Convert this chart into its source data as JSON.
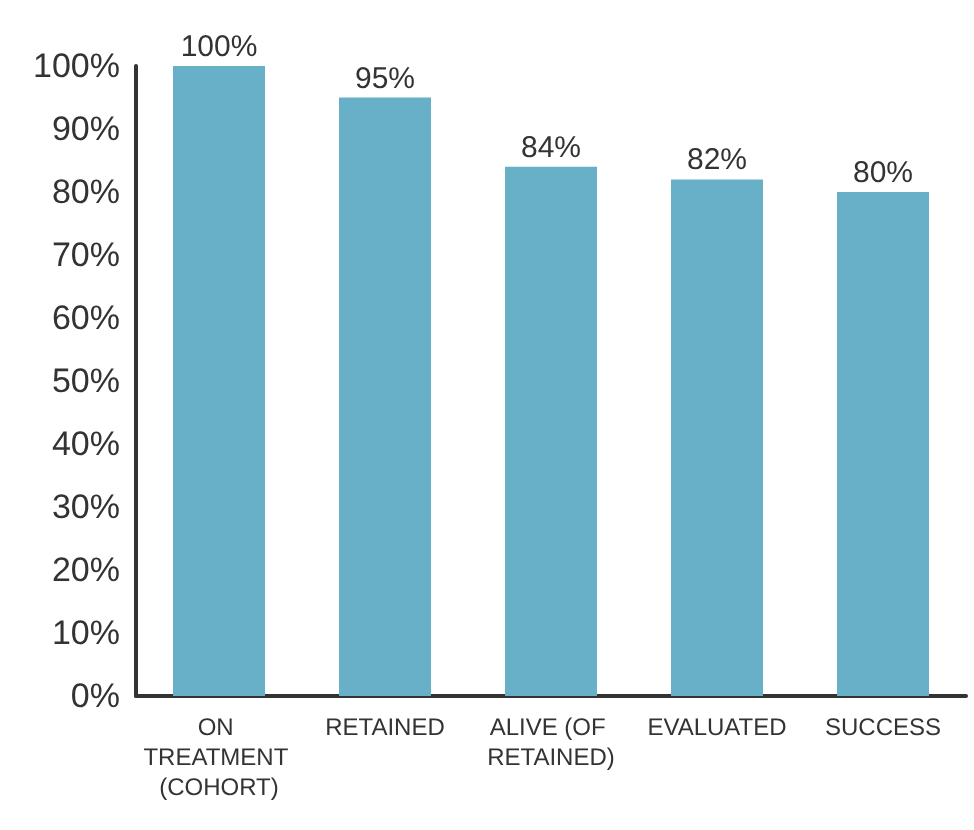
{
  "chart_data": {
    "type": "bar",
    "categories": [
      "ON TREATMENT (COHORT)",
      "RETAINED",
      "ALIVE (OF RETAINED)",
      "EVALUATED",
      "SUCCESS"
    ],
    "values": [
      100,
      95,
      84,
      82,
      80
    ],
    "value_labels": [
      "100%",
      "95%",
      "84%",
      "82%",
      "80%"
    ],
    "color": "#68b0c8",
    "ylim": [
      0,
      100
    ],
    "yticks": [
      {
        "value": 0,
        "label": "0%"
      },
      {
        "value": 10,
        "label": "10%"
      },
      {
        "value": 20,
        "label": "20%"
      },
      {
        "value": 30,
        "label": "30%"
      },
      {
        "value": 40,
        "label": "40%"
      },
      {
        "value": 50,
        "label": "50%"
      },
      {
        "value": 60,
        "label": "60%"
      },
      {
        "value": 70,
        "label": "70%"
      },
      {
        "value": 80,
        "label": "80%"
      },
      {
        "value": 90,
        "label": "90%"
      },
      {
        "value": 100,
        "label": "100%"
      }
    ],
    "grid": false
  }
}
